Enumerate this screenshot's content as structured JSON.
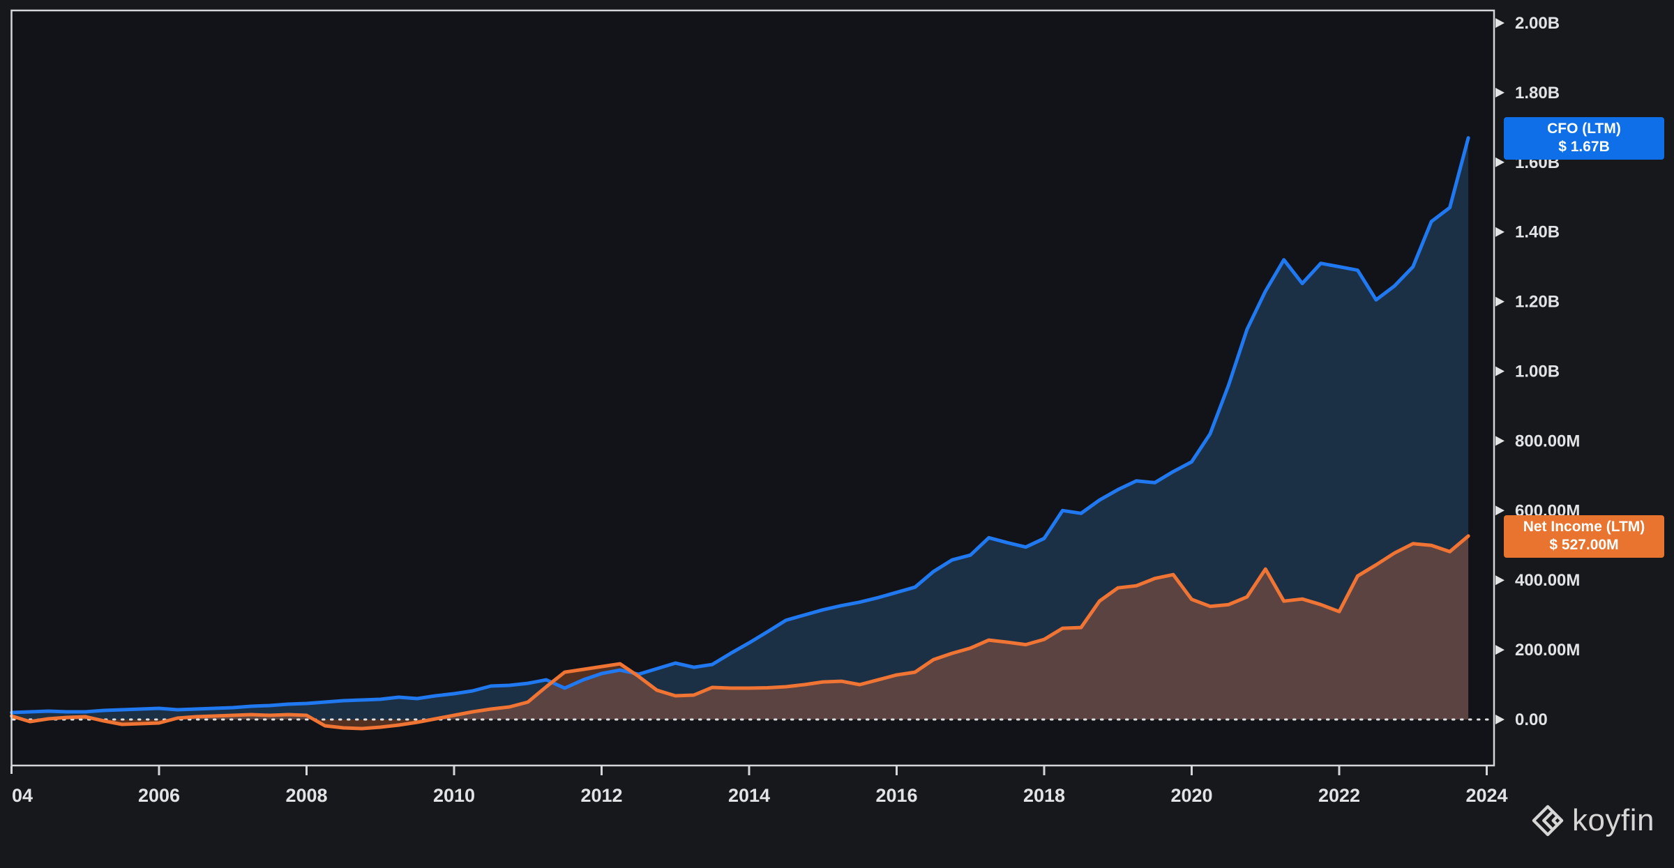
{
  "page": {
    "background": "#17181b",
    "plot_background": "#121318",
    "border_color": "#d4d6d9",
    "axis_text_color": "#e2e3e5",
    "zero_line_color": "#e0e0e0",
    "watermark_text": "koyfin",
    "watermark_color": "#d6d6d6"
  },
  "chart_data": {
    "type": "area",
    "title": "",
    "xlabel": "",
    "ylabel": "",
    "x_start": 2004.0,
    "x_step": 0.25,
    "x_end": 2023.75,
    "xlim": [
      2004,
      2024.1
    ],
    "ylim_millions": [
      -66,
      2000
    ],
    "grid": false,
    "zero_line_style": "dotted",
    "x_axis": {
      "ticks": [
        {
          "year": 2004,
          "label": "04",
          "show_tick": false
        },
        {
          "year": 2006,
          "label": "2006",
          "show_tick": true
        },
        {
          "year": 2008,
          "label": "2008",
          "show_tick": true
        },
        {
          "year": 2010,
          "label": "2010",
          "show_tick": true
        },
        {
          "year": 2012,
          "label": "2012",
          "show_tick": true
        },
        {
          "year": 2014,
          "label": "2014",
          "show_tick": true
        },
        {
          "year": 2016,
          "label": "2016",
          "show_tick": true
        },
        {
          "year": 2018,
          "label": "2018",
          "show_tick": true
        },
        {
          "year": 2020,
          "label": "2020",
          "show_tick": true
        },
        {
          "year": 2022,
          "label": "2022",
          "show_tick": true
        },
        {
          "year": 2024,
          "label": "2024",
          "show_tick": true
        }
      ]
    },
    "y_axis": {
      "side": "right",
      "ticks": [
        {
          "value": 0,
          "label": "0.00"
        },
        {
          "value": 200,
          "label": "200.00M"
        },
        {
          "value": 400,
          "label": "400.00M"
        },
        {
          "value": 600,
          "label": "600.00M"
        },
        {
          "value": 800,
          "label": "800.00M"
        },
        {
          "value": 1000,
          "label": "1.00B"
        },
        {
          "value": 1200,
          "label": "1.20B"
        },
        {
          "value": 1400,
          "label": "1.40B"
        },
        {
          "value": 1600,
          "label": "1.60B"
        },
        {
          "value": 1800,
          "label": "1.80B"
        },
        {
          "value": 2000,
          "label": "2.00B"
        }
      ]
    },
    "series": [
      {
        "name": "CFO (LTM)",
        "latest_value_label": "$ 1.67B",
        "latest_value_millions": 1670,
        "line_color": "#2079f0",
        "fill_color": "#1b2f45",
        "badge_color": "#0f6fe8",
        "values_millions": [
          20,
          22,
          24,
          22,
          22,
          26,
          28,
          30,
          32,
          28,
          30,
          32,
          34,
          38,
          40,
          44,
          46,
          50,
          54,
          56,
          58,
          64,
          60,
          68,
          74,
          82,
          96,
          98,
          104,
          114,
          90,
          114,
          132,
          142,
          130,
          146,
          162,
          150,
          158,
          190,
          220,
          252,
          285,
          300,
          315,
          327,
          337,
          350,
          365,
          380,
          425,
          458,
          472,
          522,
          508,
          495,
          520,
          600,
          592,
          630,
          660,
          685,
          680,
          712,
          740,
          820,
          960,
          1120,
          1230,
          1320,
          1252,
          1310,
          1300,
          1290,
          1205,
          1245,
          1300,
          1430,
          1470,
          1670
        ]
      },
      {
        "name": "Net Income (LTM)",
        "latest_value_label": "$ 527.00M",
        "latest_value_millions": 527,
        "line_color": "#f07434",
        "fill_color": "rgba(238,116,52,0.30)",
        "badge_color": "#e8742f",
        "values_millions": [
          10,
          -6,
          2,
          6,
          8,
          -4,
          -14,
          -12,
          -10,
          4,
          8,
          10,
          12,
          14,
          12,
          14,
          12,
          -18,
          -24,
          -26,
          -22,
          -16,
          -8,
          2,
          12,
          22,
          30,
          36,
          50,
          94,
          136,
          144,
          152,
          160,
          124,
          84,
          68,
          70,
          92,
          90,
          90,
          91,
          94,
          100,
          108,
          110,
          100,
          114,
          128,
          136,
          172,
          190,
          205,
          228,
          222,
          215,
          230,
          262,
          264,
          340,
          378,
          384,
          405,
          416,
          345,
          325,
          330,
          352,
          432,
          340,
          346,
          330,
          310,
          412,
          444,
          478,
          505,
          500,
          482,
          527
        ]
      }
    ]
  }
}
